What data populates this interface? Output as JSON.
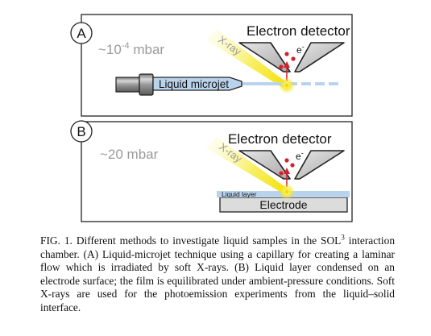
{
  "figure": {
    "panel_a": {
      "letter": "A",
      "pressure_prefix": "~10",
      "pressure_exponent": "-4",
      "pressure_unit": " mbar",
      "detector_label": "Electron detector",
      "xray_label": "X-ray",
      "electron_label": "e",
      "electron_charge": "-",
      "jet_label": "Liquid microjet"
    },
    "panel_b": {
      "letter": "B",
      "pressure": "~20 mbar",
      "detector_label": "Electron detector",
      "xray_label": "X-ray",
      "electron_label": "e",
      "electron_charge": "-",
      "layer_label": "Liquid layer",
      "electrode_label": "Electrode"
    }
  },
  "caption": {
    "label": "FIG. 1.",
    "text_before_sup": " Different methods to investigate liquid samples in the SOL",
    "sup": "3",
    "text_after_sup": " interaction chamber. (A) Liquid-microjet technique using a capillary for creating a laminar flow which is irradiated by soft X-rays. (B) Liquid layer condensed on an electrode surface; the film is equilibrated under ambient-pressure conditions. Soft X-rays are used for the photoemission experiments from the liquid–solid interface."
  },
  "colors": {
    "frame": "#222222",
    "liquid": "#b9d3ec",
    "electron_dot": "#d4202b",
    "xray": "#f5e500",
    "grey_text": "#9a9a9a",
    "detector_fill": "#c9c9c9"
  }
}
